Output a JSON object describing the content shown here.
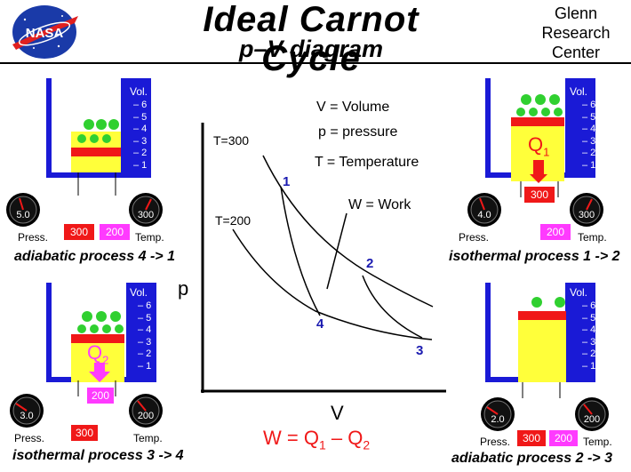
{
  "header": {
    "logo_text": "NASA",
    "title": "Ideal Carnot Cycle",
    "subtitle": "p–V diagram",
    "center_line1": "Glenn",
    "center_line2": "Research",
    "center_line3": "Center"
  },
  "legend": {
    "v": "V = Volume",
    "p": "p = pressure",
    "t": "T = Temperature",
    "w": "W = Work"
  },
  "diagram": {
    "t_high": "T=300",
    "t_low": "T=200",
    "p_axis": "p",
    "v_axis": "V",
    "pt1": "1",
    "pt2": "2",
    "pt3": "3",
    "pt4": "4",
    "work_eq_w": "W",
    "work_eq_eq": "=",
    "work_eq_q": "Q",
    "work_eq_sub1": "1",
    "work_eq_minus": "–",
    "work_eq_q2": "Q",
    "work_eq_sub2": "2"
  },
  "panels": {
    "tl": {
      "gauge_left": "5.0",
      "gauge_right": "300",
      "chip1": "300",
      "chip2": "200",
      "press": "Press.",
      "temp": "Temp.",
      "caption": "adiabatic process 4 -> 1",
      "vol": "Vol."
    },
    "tr": {
      "gauge_left": "4.0",
      "gauge_right": "300",
      "heater": "300",
      "chip": "200",
      "press": "Press.",
      "temp": "Temp.",
      "caption": "isothermal process 1 -> 2",
      "vol": "Vol.",
      "q": "Q",
      "qsub": "1"
    },
    "bl": {
      "gauge_left": "3.0",
      "gauge_right": "200",
      "cooler": "200",
      "chip": "300",
      "press": "Press.",
      "temp": "Temp.",
      "caption": "isothermal process 3 -> 4",
      "vol": "Vol.",
      "q": "Q",
      "qsub": "2"
    },
    "br": {
      "gauge_left": "2.0",
      "gauge_right": "200",
      "chip1": "300",
      "chip2": "200",
      "press": "Press.",
      "temp": "Temp.",
      "caption": "adiabatic process 2 -> 3",
      "vol": "Vol."
    }
  },
  "scale_marks": [
    "1",
    "2",
    "3",
    "4",
    "5",
    "6"
  ],
  "colors": {
    "blue": "#1a1ad6",
    "yellow": "#ffff3a",
    "red": "#f01818",
    "magenta": "#ff3aff",
    "green": "#30d030",
    "axis_label": "#1a1ab0",
    "eq_red": "#f01818"
  }
}
